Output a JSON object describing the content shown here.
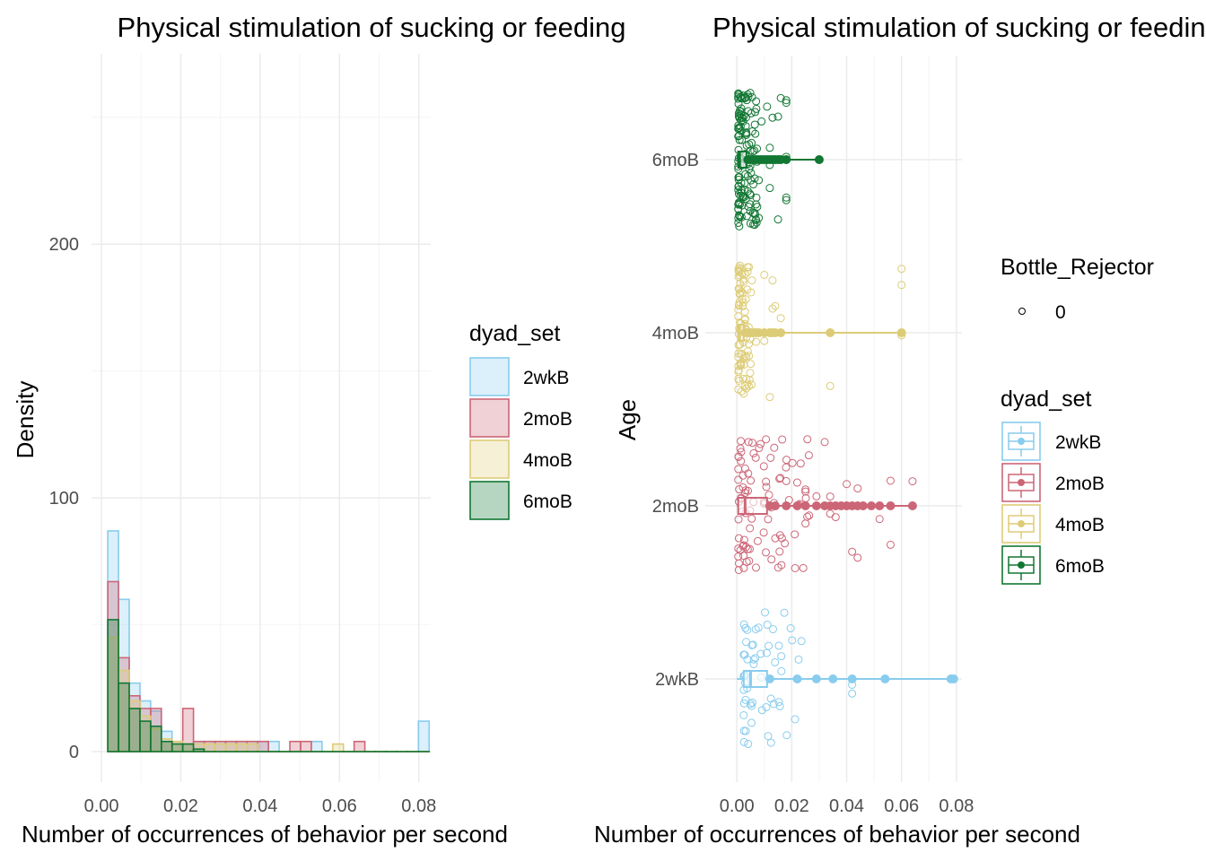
{
  "chart_data": [
    {
      "type": "histogram",
      "title": "Physical stimulation of sucking or feeding",
      "xlabel": "Number of occurrences of behavior per second",
      "ylabel": "Density",
      "xlim": [
        -0.0025,
        0.083
      ],
      "ylim": [
        -12,
        275
      ],
      "x_ticks": [
        "0.00",
        "0.02",
        "0.04",
        "0.06",
        "0.08"
      ],
      "x_tick_values": [
        0,
        0.02,
        0.04,
        0.06,
        0.08
      ],
      "y_ticks": [
        "0",
        "100",
        "200"
      ],
      "y_tick_values": [
        0,
        100,
        200
      ],
      "bin_width": 0.0027,
      "bin_start": 0.0016,
      "grid": true,
      "legend": {
        "title": "dyad_set",
        "placement": "right",
        "entries": [
          "2wkB",
          "2moB",
          "4moB",
          "6moB"
        ]
      },
      "series": [
        {
          "name": "2wkB",
          "color": "#88CCEE",
          "values": [
            87,
            60,
            27,
            20,
            16,
            8,
            0,
            0,
            4,
            4,
            4,
            4,
            4,
            4,
            4,
            4,
            0,
            0,
            0,
            4,
            0,
            0,
            0,
            0,
            0,
            0,
            0,
            0,
            0,
            12
          ]
        },
        {
          "name": "2moB",
          "color": "#CC6677",
          "values": [
            67,
            37,
            22,
            17,
            17,
            4,
            4,
            17,
            4,
            4,
            4,
            4,
            4,
            4,
            4,
            0,
            0,
            4,
            4,
            0,
            0,
            0,
            0,
            4,
            0,
            0,
            0,
            0,
            0,
            0
          ]
        },
        {
          "name": "4moB",
          "color": "#DDCC77",
          "values": [
            45,
            32,
            20,
            14,
            9,
            5,
            4,
            3,
            3,
            3,
            3,
            3,
            3,
            3,
            0,
            0,
            0,
            0,
            0,
            0,
            0,
            3,
            0,
            0,
            0,
            0,
            0,
            0,
            0,
            0
          ]
        },
        {
          "name": "6moB",
          "color": "#117733",
          "values": [
            52,
            27,
            17,
            12,
            10,
            4,
            3,
            3,
            1,
            0,
            0,
            0,
            0,
            0,
            0,
            0,
            0,
            0,
            0,
            0,
            0,
            0,
            0,
            0,
            0,
            0,
            0,
            0,
            0,
            0
          ]
        }
      ]
    },
    {
      "type": "boxplot+scatter",
      "title": "Physical stimulation of sucking or feeding",
      "xlabel": "Number of occurrences of behavior per second",
      "ylabel": "Age",
      "xlim": [
        -0.0115,
        0.082
      ],
      "x_ticks": [
        "0.00",
        "0.02",
        "0.04",
        "0.06",
        "0.08"
      ],
      "x_tick_values": [
        0,
        0.02,
        0.04,
        0.06,
        0.08
      ],
      "categories": [
        "2wkB",
        "2moB",
        "4moB",
        "6moB"
      ],
      "grid": true,
      "legends": [
        {
          "title": "Bottle_Rejector",
          "entries": [
            "0"
          ]
        },
        {
          "title": "dyad_set",
          "entries": [
            "2wkB",
            "2moB",
            "4moB",
            "6moB"
          ]
        }
      ],
      "boxes": [
        {
          "name": "2wkB",
          "color": "#88CCEE",
          "q1": 0.0025,
          "median": 0.005,
          "q3": 0.011,
          "whisker_high": 0.0795,
          "outliers": [
            0.012,
            0.022,
            0.029,
            0.035,
            0.042,
            0.054,
            0.078,
            0.079
          ]
        },
        {
          "name": "2moB",
          "color": "#CC6677",
          "q1": 0.0005,
          "median": 0.003,
          "q3": 0.011,
          "whisker_high": 0.065,
          "outliers": [
            0.012,
            0.014,
            0.018,
            0.022,
            0.025,
            0.029,
            0.032,
            0.034,
            0.036,
            0.038,
            0.04,
            0.042,
            0.044,
            0.046,
            0.049,
            0.052,
            0.056,
            0.064
          ]
        },
        {
          "name": "4moB",
          "color": "#DDCC77",
          "q1": 0.0005,
          "median": 0.001,
          "q3": 0.0025,
          "whisker_high": 0.06,
          "outliers": [
            0.003,
            0.004,
            0.005,
            0.006,
            0.007,
            0.008,
            0.01,
            0.012,
            0.013,
            0.014,
            0.016,
            0.034,
            0.06
          ]
        },
        {
          "name": "6moB",
          "color": "#117733",
          "q1": 0.0005,
          "median": 0.001,
          "q3": 0.0035,
          "whisker_high": 0.03,
          "outliers": [
            0.004,
            0.005,
            0.006,
            0.007,
            0.008,
            0.009,
            0.01,
            0.011,
            0.012,
            0.013,
            0.014,
            0.015,
            0.016,
            0.018,
            0.03
          ]
        }
      ]
    }
  ]
}
